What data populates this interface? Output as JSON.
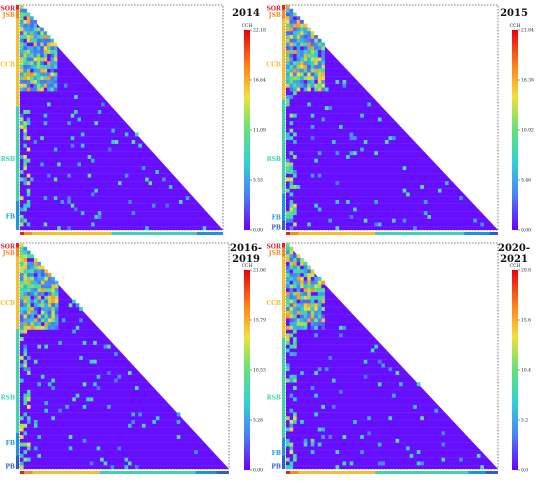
{
  "figure": {
    "group_labels": [
      "SOR",
      "JSB",
      "CCB",
      "RSB",
      "FB",
      "PB"
    ],
    "group_colors": {
      "SOR": "#e8202a",
      "JSB": "#f58a1f",
      "CCB": "#f5c02a",
      "RSB": "#3fd3b1",
      "FB": "#1a96e0",
      "PB": "#2b5fc4"
    },
    "colormap": [
      "#6a00ff",
      "#4a7cf5",
      "#2fd1d8",
      "#60e27a",
      "#f2e03a",
      "#ff7a1a",
      "#e8000f"
    ]
  },
  "chart_data": [
    {
      "type": "heatmap",
      "title": "2014",
      "shape": "lower-triangular",
      "colorbar_label": "CCH",
      "colorbar_ticks": [
        "22.18",
        "16.64",
        "11.09",
        "5.55",
        "0.00"
      ],
      "value_range": [
        0.0,
        22.18
      ],
      "row_groups": [
        "SOR",
        "JSB",
        "CCB",
        "RSB",
        "FB"
      ],
      "row_group_fractions": [
        0.02,
        0.04,
        0.39,
        0.42,
        0.13
      ],
      "col_group_fractions": [
        0.02,
        0.04,
        0.39,
        0.42,
        0.13
      ],
      "dense_band": "upper rows of CCB"
    },
    {
      "type": "heatmap",
      "title": "2015",
      "shape": "lower-triangular",
      "colorbar_label": "CCH",
      "colorbar_ticks": [
        "21.84",
        "16.38",
        "10.92",
        "5.46",
        "0.00"
      ],
      "value_range": [
        0.0,
        21.84
      ],
      "row_groups": [
        "SOR",
        "JSB",
        "CCB",
        "RSB",
        "FB",
        "PB"
      ],
      "row_group_fractions": [
        0.02,
        0.04,
        0.36,
        0.42,
        0.12,
        0.04
      ],
      "col_group_fractions": [
        0.02,
        0.04,
        0.36,
        0.42,
        0.12,
        0.04
      ],
      "dense_band": "upper rows of CCB"
    },
    {
      "type": "heatmap",
      "title": "2016-\n2019",
      "shape": "lower-triangular",
      "colorbar_label": "CCH",
      "colorbar_ticks": [
        "21.06",
        "15.79",
        "10.53",
        "5.26",
        "0.00"
      ],
      "value_range": [
        0.0,
        21.06
      ],
      "row_groups": [
        "SOR",
        "JSB",
        "CCB",
        "RSB",
        "FB",
        "PB"
      ],
      "row_group_fractions": [
        0.02,
        0.04,
        0.32,
        0.46,
        0.1,
        0.06
      ],
      "col_group_fractions": [
        0.02,
        0.04,
        0.32,
        0.46,
        0.1,
        0.06
      ],
      "dense_band": "upper rows of CCB"
    },
    {
      "type": "heatmap",
      "title": "2020-\n2021",
      "shape": "lower-triangular",
      "colorbar_label": "CCH",
      "colorbar_ticks": [
        "20.8",
        "15.6",
        "10.4",
        "5.2",
        "0.0"
      ],
      "value_range": [
        0.0,
        20.8
      ],
      "row_groups": [
        "SOR",
        "JSB",
        "CCB",
        "RSB",
        "FB",
        "PB"
      ],
      "row_group_fractions": [
        0.02,
        0.04,
        0.36,
        0.44,
        0.08,
        0.06
      ],
      "col_group_fractions": [
        0.02,
        0.04,
        0.36,
        0.44,
        0.08,
        0.06
      ],
      "dense_band": "upper rows of CCB"
    }
  ]
}
